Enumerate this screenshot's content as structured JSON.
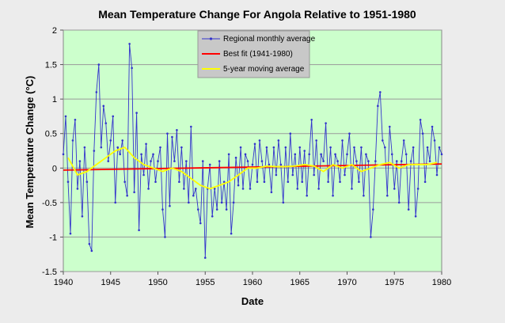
{
  "chart_data": {
    "type": "line",
    "title": "Mean Temperature Change For Angola Relative to 1951-1980",
    "xlabel": "Date",
    "ylabel": "Mean Temperature  Change  (°C)",
    "xlim": [
      1940,
      1980
    ],
    "ylim": [
      -1.5,
      2
    ],
    "xticks": [
      "1940",
      "1945",
      "1950",
      "1955",
      "1960",
      "1965",
      "1970",
      "1975",
      "1980"
    ],
    "yticks": [
      "-1.5",
      "-1",
      "-0.5",
      "0",
      "0.5",
      "1",
      "1.5",
      "2"
    ],
    "grid": "horizontal",
    "legend_position": "top-center",
    "colors": {
      "plot_background": "#ccffcc",
      "monthly": "#3333cc",
      "best_fit": "#ff0000",
      "moving_avg": "#ffff00"
    },
    "series": [
      {
        "name": "Regional monthly average",
        "style": "line-with-markers",
        "x": [
          1940.0,
          1940.25,
          1940.5,
          1940.75,
          1941.0,
          1941.25,
          1941.5,
          1941.75,
          1942.0,
          1942.25,
          1942.5,
          1942.75,
          1943.0,
          1943.25,
          1943.5,
          1943.75,
          1944.0,
          1944.25,
          1944.5,
          1944.75,
          1945.0,
          1945.25,
          1945.5,
          1945.75,
          1946.0,
          1946.25,
          1946.5,
          1946.75,
          1947.0,
          1947.25,
          1947.5,
          1947.75,
          1948.0,
          1948.25,
          1948.5,
          1948.75,
          1949.0,
          1949.25,
          1949.5,
          1949.75,
          1950.0,
          1950.25,
          1950.5,
          1950.75,
          1951.0,
          1951.25,
          1951.5,
          1951.75,
          1952.0,
          1952.25,
          1952.5,
          1952.75,
          1953.0,
          1953.25,
          1953.5,
          1953.75,
          1954.0,
          1954.25,
          1954.5,
          1954.75,
          1955.0,
          1955.25,
          1955.5,
          1955.75,
          1956.0,
          1956.25,
          1956.5,
          1956.75,
          1957.0,
          1957.25,
          1957.5,
          1957.75,
          1958.0,
          1958.25,
          1958.5,
          1958.75,
          1959.0,
          1959.25,
          1959.5,
          1959.75,
          1960.0,
          1960.25,
          1960.5,
          1960.75,
          1961.0,
          1961.25,
          1961.5,
          1961.75,
          1962.0,
          1962.25,
          1962.5,
          1962.75,
          1963.0,
          1963.25,
          1963.5,
          1963.75,
          1964.0,
          1964.25,
          1964.5,
          1964.75,
          1965.0,
          1965.25,
          1965.5,
          1965.75,
          1966.0,
          1966.25,
          1966.5,
          1966.75,
          1967.0,
          1967.25,
          1967.5,
          1967.75,
          1968.0,
          1968.25,
          1968.5,
          1968.75,
          1969.0,
          1969.25,
          1969.5,
          1969.75,
          1970.0,
          1970.25,
          1970.5,
          1970.75,
          1971.0,
          1971.25,
          1971.5,
          1971.75,
          1972.0,
          1972.25,
          1972.5,
          1972.75,
          1973.0,
          1973.25,
          1973.5,
          1973.75,
          1974.0,
          1974.25,
          1974.5,
          1974.75,
          1975.0,
          1975.25,
          1975.5,
          1975.75,
          1976.0,
          1976.25,
          1976.5,
          1976.75,
          1977.0,
          1977.25,
          1977.5,
          1977.75,
          1978.0,
          1978.25,
          1978.5,
          1978.75,
          1979.0,
          1979.25,
          1979.5,
          1979.75,
          1980.0
        ],
        "y": [
          0.2,
          0.75,
          -0.2,
          -0.95,
          0.4,
          0.7,
          -0.3,
          0.1,
          -0.7,
          0.3,
          -0.2,
          -1.1,
          -1.2,
          0.25,
          1.1,
          1.5,
          0.3,
          0.9,
          0.65,
          0.1,
          0.4,
          0.75,
          -0.5,
          0.3,
          0.2,
          0.4,
          -0.2,
          -0.4,
          1.8,
          1.45,
          -0.35,
          0.8,
          -0.9,
          0.2,
          -0.1,
          0.35,
          -0.3,
          0.1,
          0.2,
          -0.2,
          0.1,
          0.3,
          -0.6,
          -1.0,
          0.5,
          -0.55,
          0.45,
          0.1,
          0.55,
          -0.2,
          0.3,
          -0.3,
          0.1,
          -0.5,
          0.6,
          -0.4,
          -0.3,
          -0.6,
          -0.8,
          0.1,
          -1.3,
          -0.3,
          0.05,
          -0.7,
          -0.3,
          -0.6,
          0.1,
          -0.5,
          -0.2,
          -0.6,
          0.2,
          -0.95,
          -0.5,
          0.15,
          -0.25,
          0.3,
          -0.3,
          0.2,
          0.1,
          -0.3,
          0.05,
          0.35,
          -0.2,
          0.4,
          0.1,
          -0.2,
          0.3,
          0.05,
          -0.35,
          0.3,
          -0.1,
          0.4,
          0.05,
          -0.5,
          0.3,
          -0.2,
          0.5,
          -0.1,
          0.2,
          -0.3,
          0.3,
          -0.2,
          0.25,
          -0.4,
          0.2,
          0.7,
          -0.1,
          0.4,
          -0.3,
          0.2,
          0.1,
          0.65,
          -0.2,
          0.3,
          -0.4,
          0.2,
          0.1,
          -0.2,
          0.4,
          -0.1,
          0.2,
          0.5,
          -0.3,
          0.3,
          0.1,
          -0.2,
          0.3,
          -0.4,
          0.2,
          0.1,
          -1.0,
          -0.6,
          0.1,
          0.9,
          1.1,
          0.4,
          0.3,
          -0.4,
          0.6,
          0.2,
          -0.3,
          0.1,
          -0.5,
          0.1,
          0.4,
          0.2,
          -0.6,
          0.1,
          0.3,
          -0.7,
          -0.3,
          0.7,
          0.5,
          -0.2,
          0.3,
          0.1,
          0.6,
          0.4,
          -0.1,
          0.3,
          0.2
        ]
      },
      {
        "name": "Best fit (1941-1980)",
        "style": "line",
        "x": [
          1940,
          1980
        ],
        "y": [
          -0.03,
          0.06
        ]
      },
      {
        "name": "5-year moving average",
        "style": "line",
        "x": [
          1940.5,
          1941.5,
          1942.5,
          1943.5,
          1944.5,
          1945.5,
          1946.5,
          1947.5,
          1948.5,
          1949.5,
          1950.5,
          1951.5,
          1952.5,
          1953.5,
          1954.5,
          1955.5,
          1956.5,
          1957.5,
          1958.5,
          1959.5,
          1960.5,
          1961.5,
          1962.5,
          1963.5,
          1964.5,
          1965.5,
          1966.5,
          1967.5,
          1968.5,
          1969.5,
          1970.5,
          1971.5,
          1972.5,
          1973.5,
          1974.5,
          1975.5,
          1976.5,
          1977.5,
          1978.5,
          1979.5
        ],
        "y": [
          0.15,
          -0.1,
          -0.05,
          0.05,
          0.15,
          0.25,
          0.3,
          0.15,
          0.05,
          0.0,
          -0.05,
          0.0,
          -0.05,
          -0.15,
          -0.25,
          -0.3,
          -0.25,
          -0.2,
          -0.1,
          0.0,
          0.0,
          0.03,
          0.02,
          0.02,
          0.03,
          0.05,
          0.03,
          -0.05,
          0.05,
          0.0,
          0.05,
          -0.05,
          0.0,
          0.05,
          0.08,
          0.0,
          0.05,
          0.05,
          0.05,
          0.08
        ]
      }
    ]
  }
}
